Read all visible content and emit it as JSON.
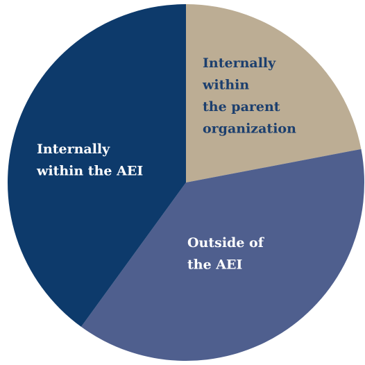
{
  "chart_data": {
    "type": "pie",
    "categories": [
      "Internally\nwithin\nthe parent\norganization",
      "Outside of\nthe AEI",
      "Internally\nwithin the AEI"
    ],
    "values": [
      22,
      38,
      40
    ],
    "colors": [
      "#bcad94",
      "#4f5f8e",
      "#0d3a6b"
    ],
    "label_colors": [
      "#1c3f6e",
      "#ffffff",
      "#ffffff"
    ]
  }
}
